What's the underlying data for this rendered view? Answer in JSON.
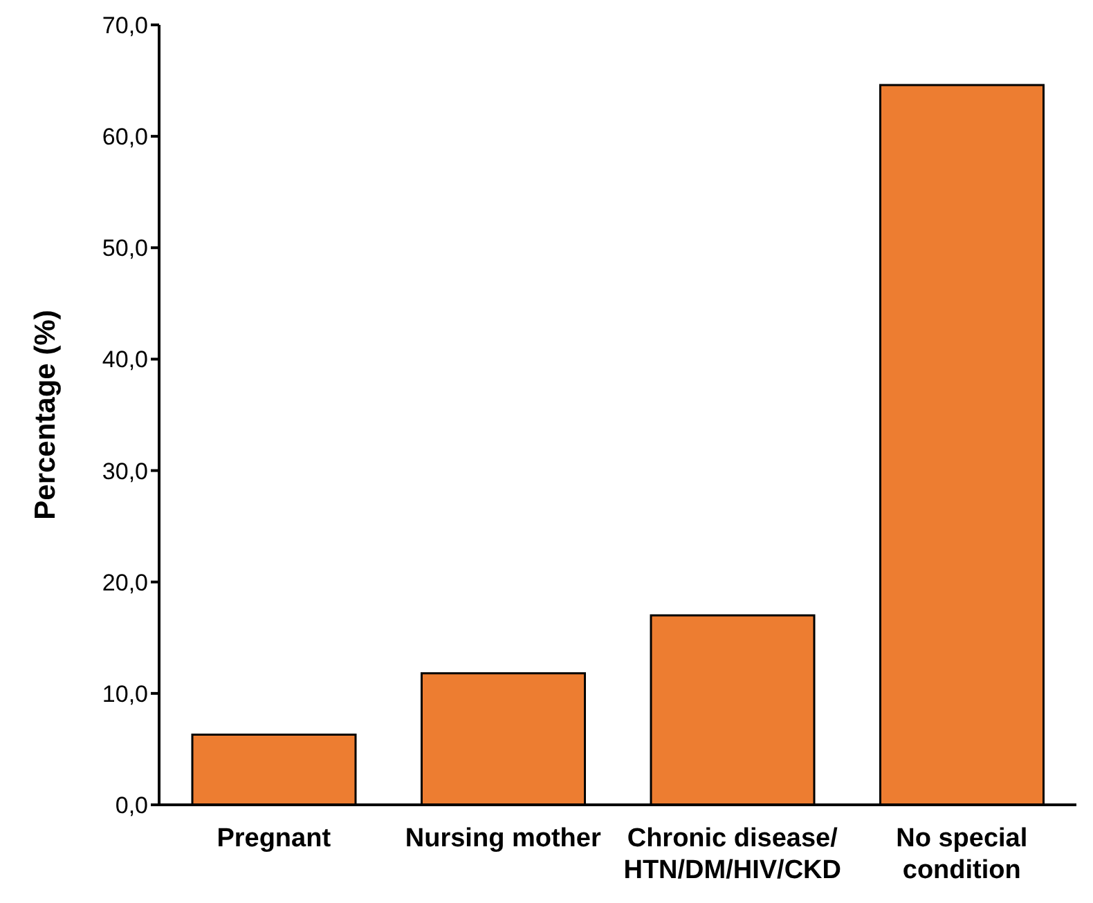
{
  "chart_data": {
    "type": "bar",
    "ylabel": "Percentage (%)",
    "categories": [
      "Pregnant",
      "Nursing mother",
      "Chronic disease/\nHTN/DM/HIV/CKD",
      "No special\ncondition"
    ],
    "values": [
      6.3,
      11.8,
      17.0,
      64.6
    ],
    "color": "#ed7d31",
    "ylim": [
      0,
      70
    ],
    "yticks": [
      {
        "value": 0,
        "label": "0,0"
      },
      {
        "value": 10,
        "label": "10,0"
      },
      {
        "value": 20,
        "label": "20,0"
      },
      {
        "value": 30,
        "label": "30,0"
      },
      {
        "value": 40,
        "label": "40,0"
      },
      {
        "value": 50,
        "label": "50,0"
      },
      {
        "value": 60,
        "label": "60,0"
      },
      {
        "value": 70,
        "label": "70,0"
      }
    ],
    "grid": false,
    "legend": false
  }
}
